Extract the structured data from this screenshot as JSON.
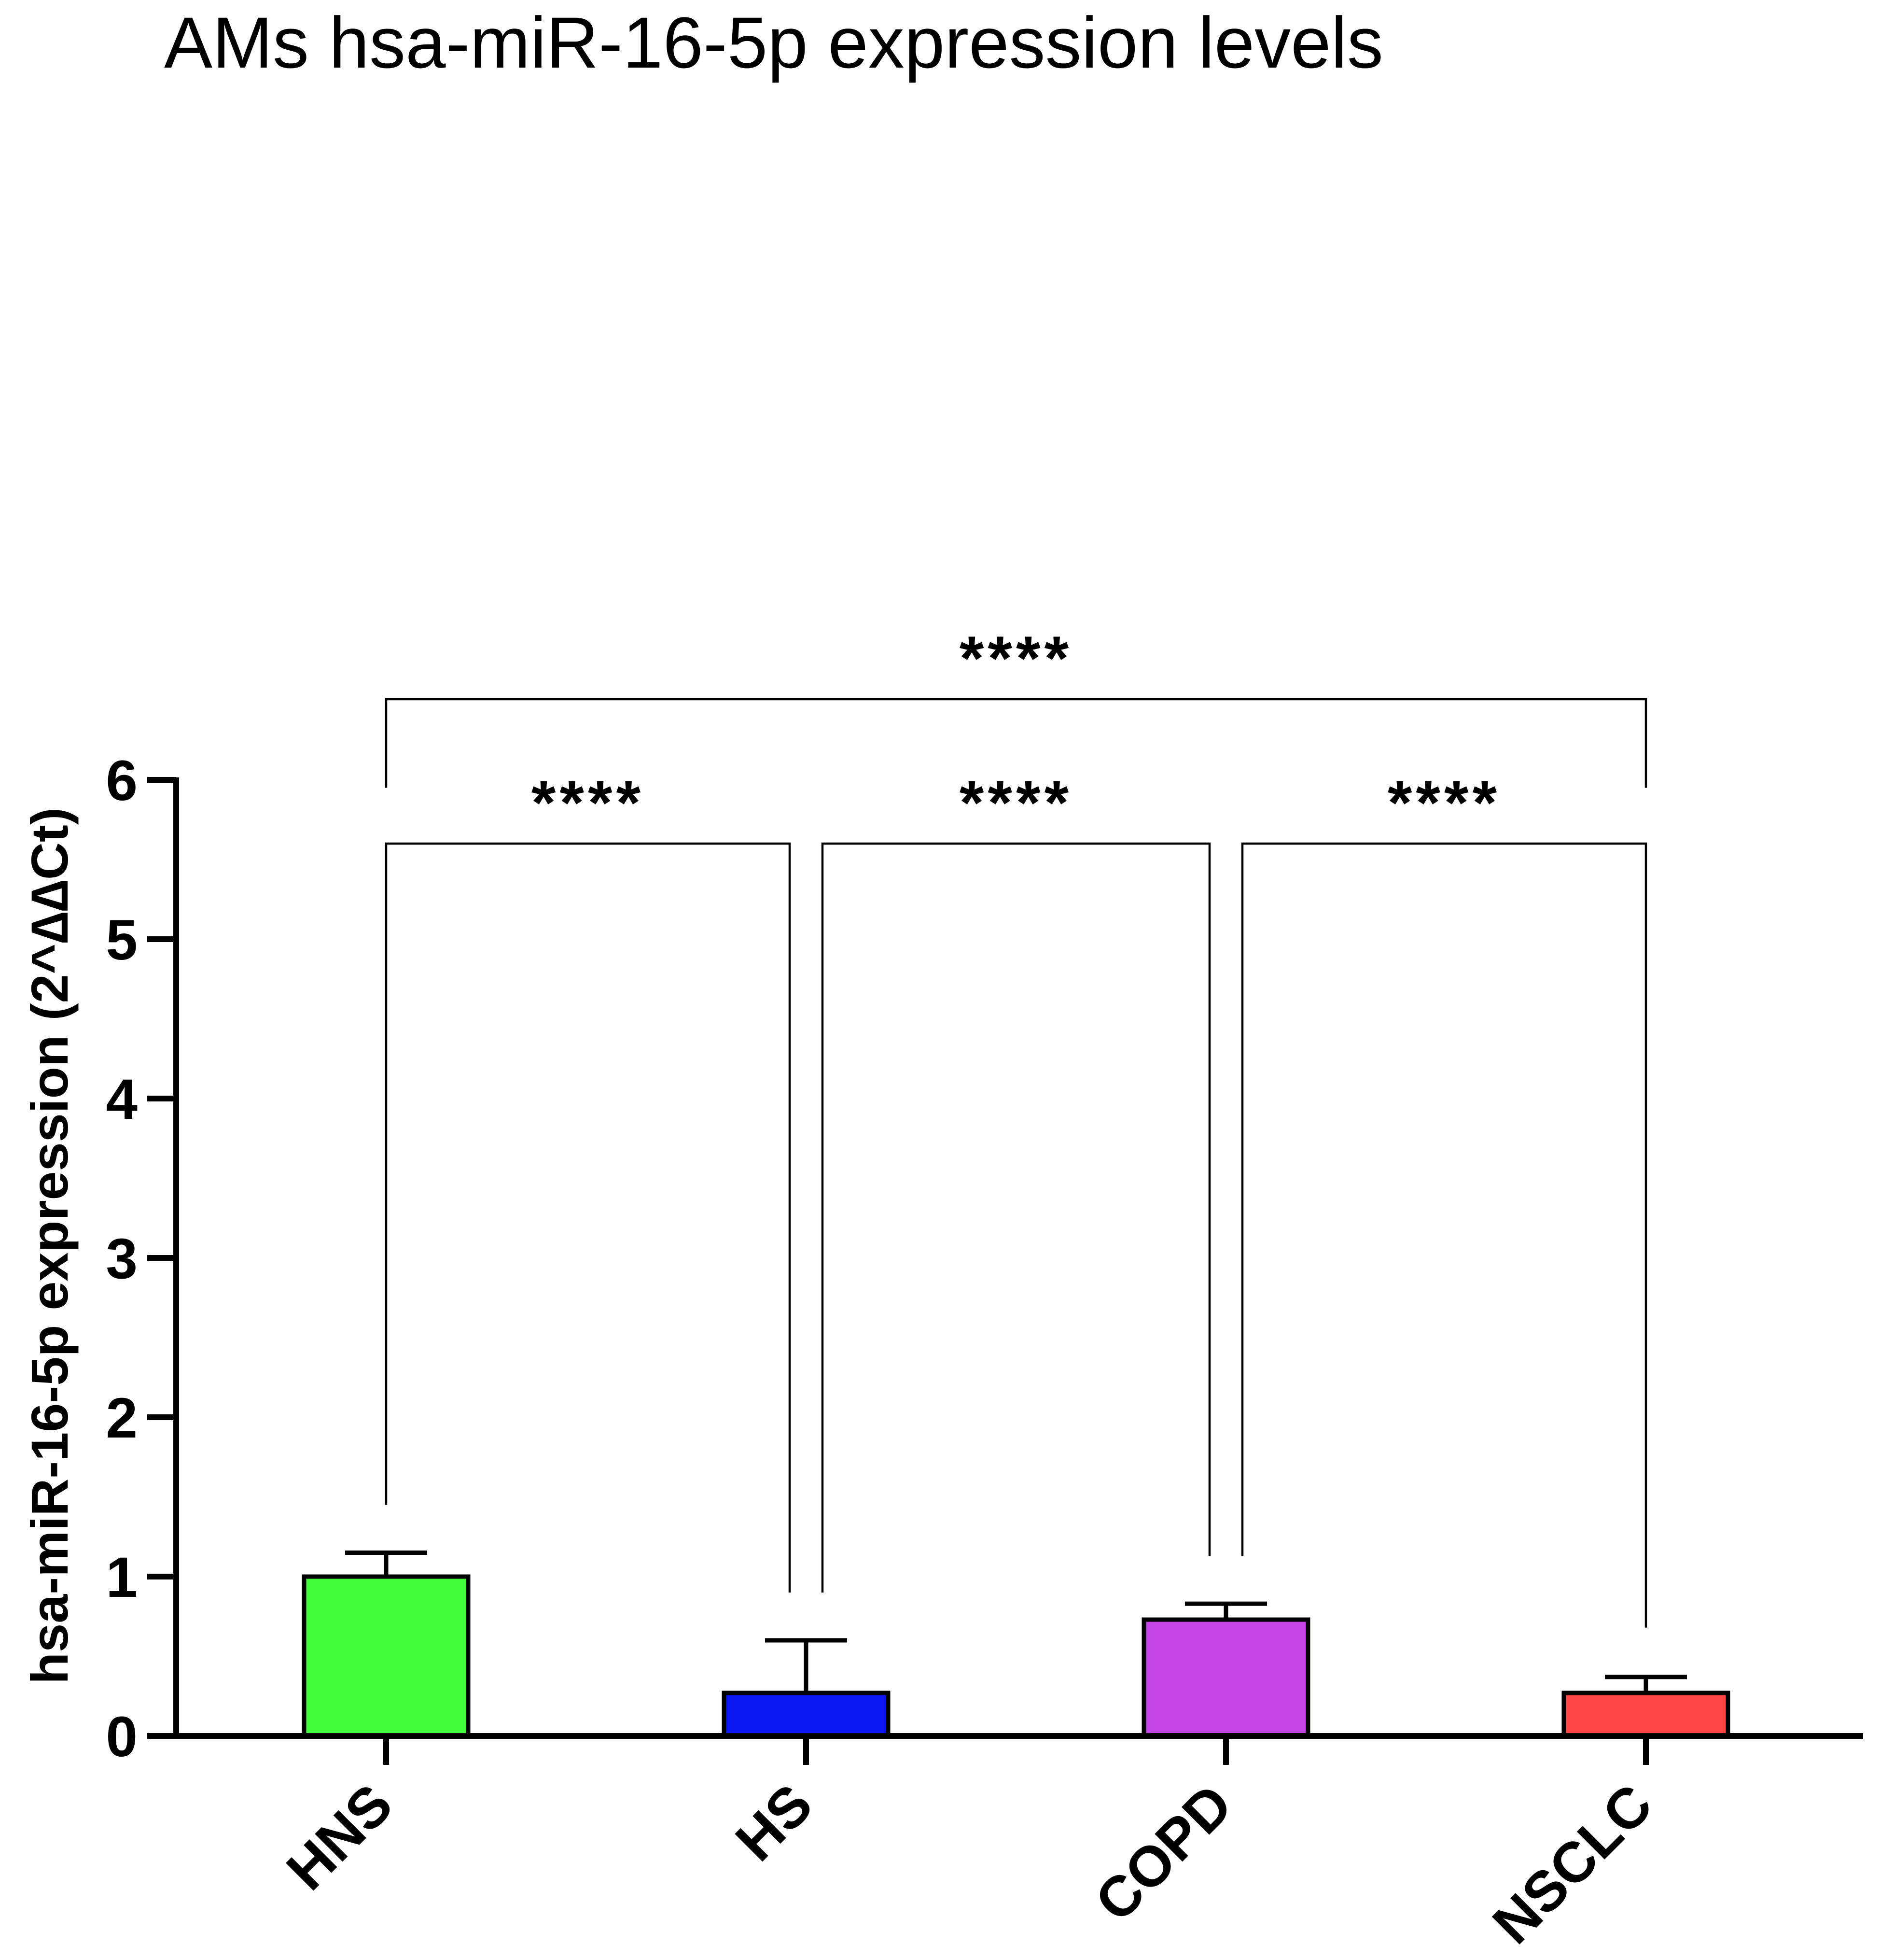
{
  "chart_data": {
    "type": "bar",
    "title": "AMs hsa-miR-16-5p expression levels",
    "xlabel": "",
    "ylabel": "hsa-miR-16-5p expression (2^∆∆Ct)",
    "ylim": [
      0,
      6
    ],
    "yticks": [
      "0",
      "1",
      "2",
      "3",
      "4",
      "5",
      "6"
    ],
    "categories": [
      "HNS",
      "HS",
      "COPD",
      "NSCLC"
    ],
    "values": [
      1.0,
      0.27,
      0.73,
      0.27
    ],
    "errors": [
      0.15,
      0.33,
      0.1,
      0.1
    ],
    "colors": [
      "#44ff3c",
      "#0a16f0",
      "#c444e8",
      "#ff4444"
    ],
    "grid": false,
    "comparisons": [
      {
        "from": "HNS",
        "to": "HS",
        "label": "****",
        "left_drop": 1.45,
        "right_drop": 0.9,
        "bar_level": 5.6
      },
      {
        "from": "HS",
        "to": "COPD",
        "label": "****",
        "left_drop": 0.9,
        "right_drop": 1.13,
        "bar_level": 5.6
      },
      {
        "from": "COPD",
        "to": "NSCLC",
        "label": "****",
        "left_drop": 1.13,
        "right_drop": 0.68,
        "bar_level": 5.6
      },
      {
        "from": "HNS",
        "to": "NSCLC",
        "label": "****",
        "left_drop": 5.95,
        "right_drop": 5.95,
        "bar_level": 6.55
      }
    ]
  }
}
